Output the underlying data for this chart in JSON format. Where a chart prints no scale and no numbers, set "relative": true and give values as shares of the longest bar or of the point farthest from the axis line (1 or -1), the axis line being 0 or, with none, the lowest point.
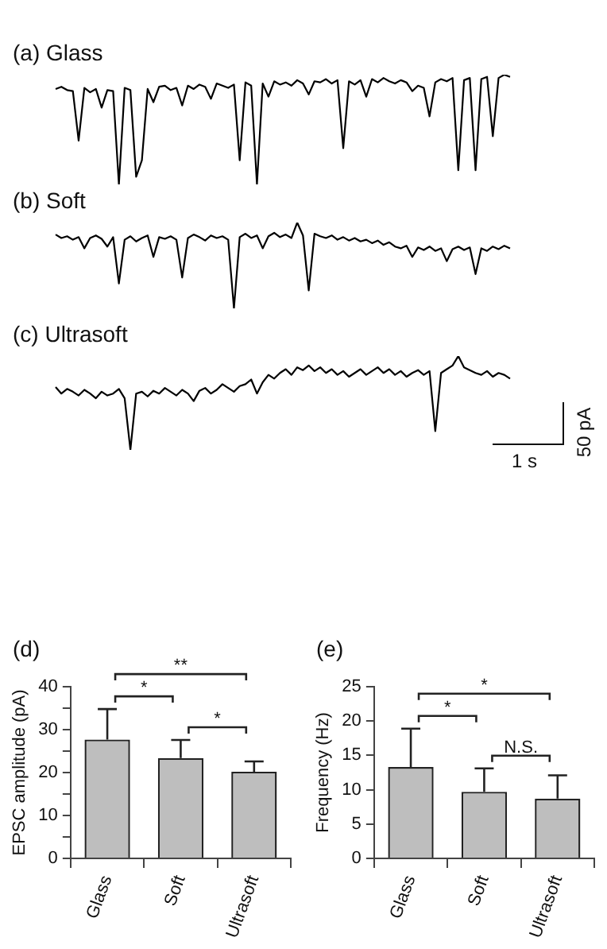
{
  "chart_data": [
    {
      "type": "line",
      "title": "(a) Glass",
      "relative": true,
      "categories": [
        null,
        null,
        null,
        null,
        null,
        null,
        null,
        null,
        null,
        null,
        null,
        null,
        null,
        null,
        null,
        null,
        null,
        null,
        null,
        null,
        null,
        null,
        null,
        null,
        null,
        null,
        null,
        null,
        null,
        null,
        null,
        null,
        null,
        null,
        null,
        null,
        null,
        null,
        null,
        null,
        null,
        null,
        null,
        null,
        null,
        null,
        null,
        null,
        null,
        null,
        null,
        null,
        null,
        null,
        null,
        null,
        null,
        null,
        null,
        null,
        null,
        null,
        null,
        null,
        null,
        null,
        null,
        null,
        null,
        null,
        null,
        null,
        null,
        null,
        null,
        null,
        null,
        null,
        null,
        null
      ],
      "series": [
        {
          "color": "#000000",
          "values": [
            0.87,
            0.89,
            0.86,
            0.85,
            0.4,
            0.88,
            0.84,
            0.87,
            0.7,
            0.86,
            0.85,
            0,
            0.88,
            0.86,
            0.07,
            0.22,
            0.87,
            0.75,
            0.89,
            0.9,
            0.86,
            0.88,
            0.72,
            0.9,
            0.87,
            0.91,
            0.89,
            0.78,
            0.92,
            0.9,
            0.88,
            0.91,
            0.22,
            0.93,
            0.9,
            0,
            0.92,
            0.8,
            0.94,
            0.91,
            0.93,
            0.9,
            0.95,
            0.92,
            0.82,
            0.94,
            0.93,
            0.96,
            0.92,
            0.95,
            0.33,
            0.94,
            0.91,
            0.95,
            0.8,
            0.96,
            0.93,
            0.97,
            0.94,
            0.92,
            0.95,
            0.93,
            0.85,
            0.9,
            0.88,
            0.62,
            0.93,
            0.96,
            0.94,
            0.97,
            0.13,
            0.95,
            0.97,
            0.13,
            0.96,
            0.98,
            0.44,
            0.97,
            1,
            0.98
          ]
        }
      ]
    },
    {
      "type": "line",
      "title": "(b) Soft",
      "relative": true,
      "categories": [
        null,
        null,
        null,
        null,
        null,
        null,
        null,
        null,
        null,
        null,
        null,
        null,
        null,
        null,
        null,
        null,
        null,
        null,
        null,
        null,
        null,
        null,
        null,
        null,
        null,
        null,
        null,
        null,
        null,
        null,
        null,
        null,
        null,
        null,
        null,
        null,
        null,
        null,
        null,
        null,
        null,
        null,
        null,
        null,
        null,
        null,
        null,
        null,
        null,
        null,
        null,
        null,
        null,
        null,
        null,
        null,
        null,
        null,
        null,
        null,
        null,
        null,
        null,
        null,
        null,
        null,
        null,
        null,
        null,
        null,
        null,
        null,
        null,
        null,
        null,
        null,
        null,
        null,
        null,
        null
      ],
      "series": [
        {
          "color": "#000000",
          "values": [
            0.86,
            0.82,
            0.84,
            0.8,
            0.83,
            0.7,
            0.82,
            0.85,
            0.81,
            0.72,
            0.83,
            0.29,
            0.8,
            0.84,
            0.78,
            0.82,
            0.85,
            0.6,
            0.83,
            0.81,
            0.84,
            0.8,
            0.36,
            0.82,
            0.86,
            0.83,
            0.79,
            0.85,
            0.82,
            0.84,
            0.8,
            0,
            0.83,
            0.87,
            0.82,
            0.85,
            0.7,
            0.84,
            0.88,
            0.83,
            0.86,
            0.82,
            1,
            0.85,
            0.21,
            0.87,
            0.84,
            0.82,
            0.85,
            0.8,
            0.83,
            0.79,
            0.82,
            0.78,
            0.8,
            0.76,
            0.79,
            0.74,
            0.77,
            0.72,
            0.7,
            0.73,
            0.6,
            0.71,
            0.68,
            0.72,
            0.67,
            0.7,
            0.55,
            0.69,
            0.72,
            0.68,
            0.71,
            0.4,
            0.7,
            0.67,
            0.72,
            0.69,
            0.73,
            0.7
          ]
        }
      ]
    },
    {
      "type": "line",
      "title": "(c) Ultrasoft",
      "relative": true,
      "annotations": [
        "50 pA",
        "1 s"
      ],
      "categories": [
        null,
        null,
        null,
        null,
        null,
        null,
        null,
        null,
        null,
        null,
        null,
        null,
        null,
        null,
        null,
        null,
        null,
        null,
        null,
        null,
        null,
        null,
        null,
        null,
        null,
        null,
        null,
        null,
        null,
        null,
        null,
        null,
        null,
        null,
        null,
        null,
        null,
        null,
        null,
        null,
        null,
        null,
        null,
        null,
        null,
        null,
        null,
        null,
        null,
        null,
        null,
        null,
        null,
        null,
        null,
        null,
        null,
        null,
        null,
        null,
        null,
        null,
        null,
        null,
        null,
        null,
        null,
        null,
        null,
        null,
        null,
        null,
        null,
        null,
        null,
        null,
        null,
        null,
        null,
        null
      ],
      "series": [
        {
          "color": "#000000",
          "values": [
            0.67,
            0.6,
            0.65,
            0.62,
            0.58,
            0.64,
            0.6,
            0.55,
            0.62,
            0.58,
            0.6,
            0.65,
            0.55,
            0,
            0.6,
            0.62,
            0.57,
            0.63,
            0.6,
            0.66,
            0.62,
            0.58,
            0.64,
            0.6,
            0.52,
            0.63,
            0.66,
            0.6,
            0.64,
            0.7,
            0.66,
            0.62,
            0.68,
            0.7,
            0.75,
            0.6,
            0.72,
            0.8,
            0.76,
            0.82,
            0.86,
            0.8,
            0.88,
            0.85,
            0.9,
            0.84,
            0.88,
            0.82,
            0.86,
            0.8,
            0.84,
            0.78,
            0.82,
            0.86,
            0.8,
            0.84,
            0.88,
            0.82,
            0.86,
            0.8,
            0.84,
            0.78,
            0.82,
            0.85,
            0.8,
            0.84,
            0.2,
            0.82,
            0.86,
            0.9,
            1,
            0.88,
            0.85,
            0.82,
            0.8,
            0.84,
            0.78,
            0.82,
            0.8,
            0.76
          ]
        }
      ]
    },
    {
      "type": "bar",
      "title": "(d)",
      "ylabel": "EPSC amplitude (pA)",
      "categories": [
        "Glass",
        "Soft",
        "Ultrasoft"
      ],
      "values": [
        27.7,
        23.4,
        20.2
      ],
      "color": "#bebebe",
      "errors": [
        [
          27.7,
          34.8
        ],
        [
          23.4,
          27.6
        ],
        [
          20.2,
          22.6
        ]
      ],
      "ylim": [
        0,
        40
      ],
      "yticks": [
        0,
        {
          "value": 5,
          "label": null
        },
        10,
        {
          "value": 15,
          "label": null
        },
        20,
        {
          "value": 25,
          "label": null
        },
        30,
        {
          "value": 35,
          "label": null
        },
        40
      ],
      "annotations": [
        "*",
        "*",
        "**"
      ]
    },
    {
      "type": "bar",
      "title": "(e)",
      "ylabel": "Frequency (Hz)",
      "categories": [
        "Glass",
        "Soft",
        "Ultrasoft"
      ],
      "values": [
        13.3,
        9.7,
        8.7
      ],
      "color": "#bebebe",
      "errors": [
        [
          13.3,
          18.9
        ],
        [
          9.7,
          13.1
        ],
        [
          8.7,
          12.1
        ]
      ],
      "ylim": [
        0,
        25
      ],
      "yticks": [
        0,
        5,
        10,
        15,
        20,
        25
      ],
      "annotations": [
        "*",
        "N.S.",
        "*"
      ]
    }
  ]
}
